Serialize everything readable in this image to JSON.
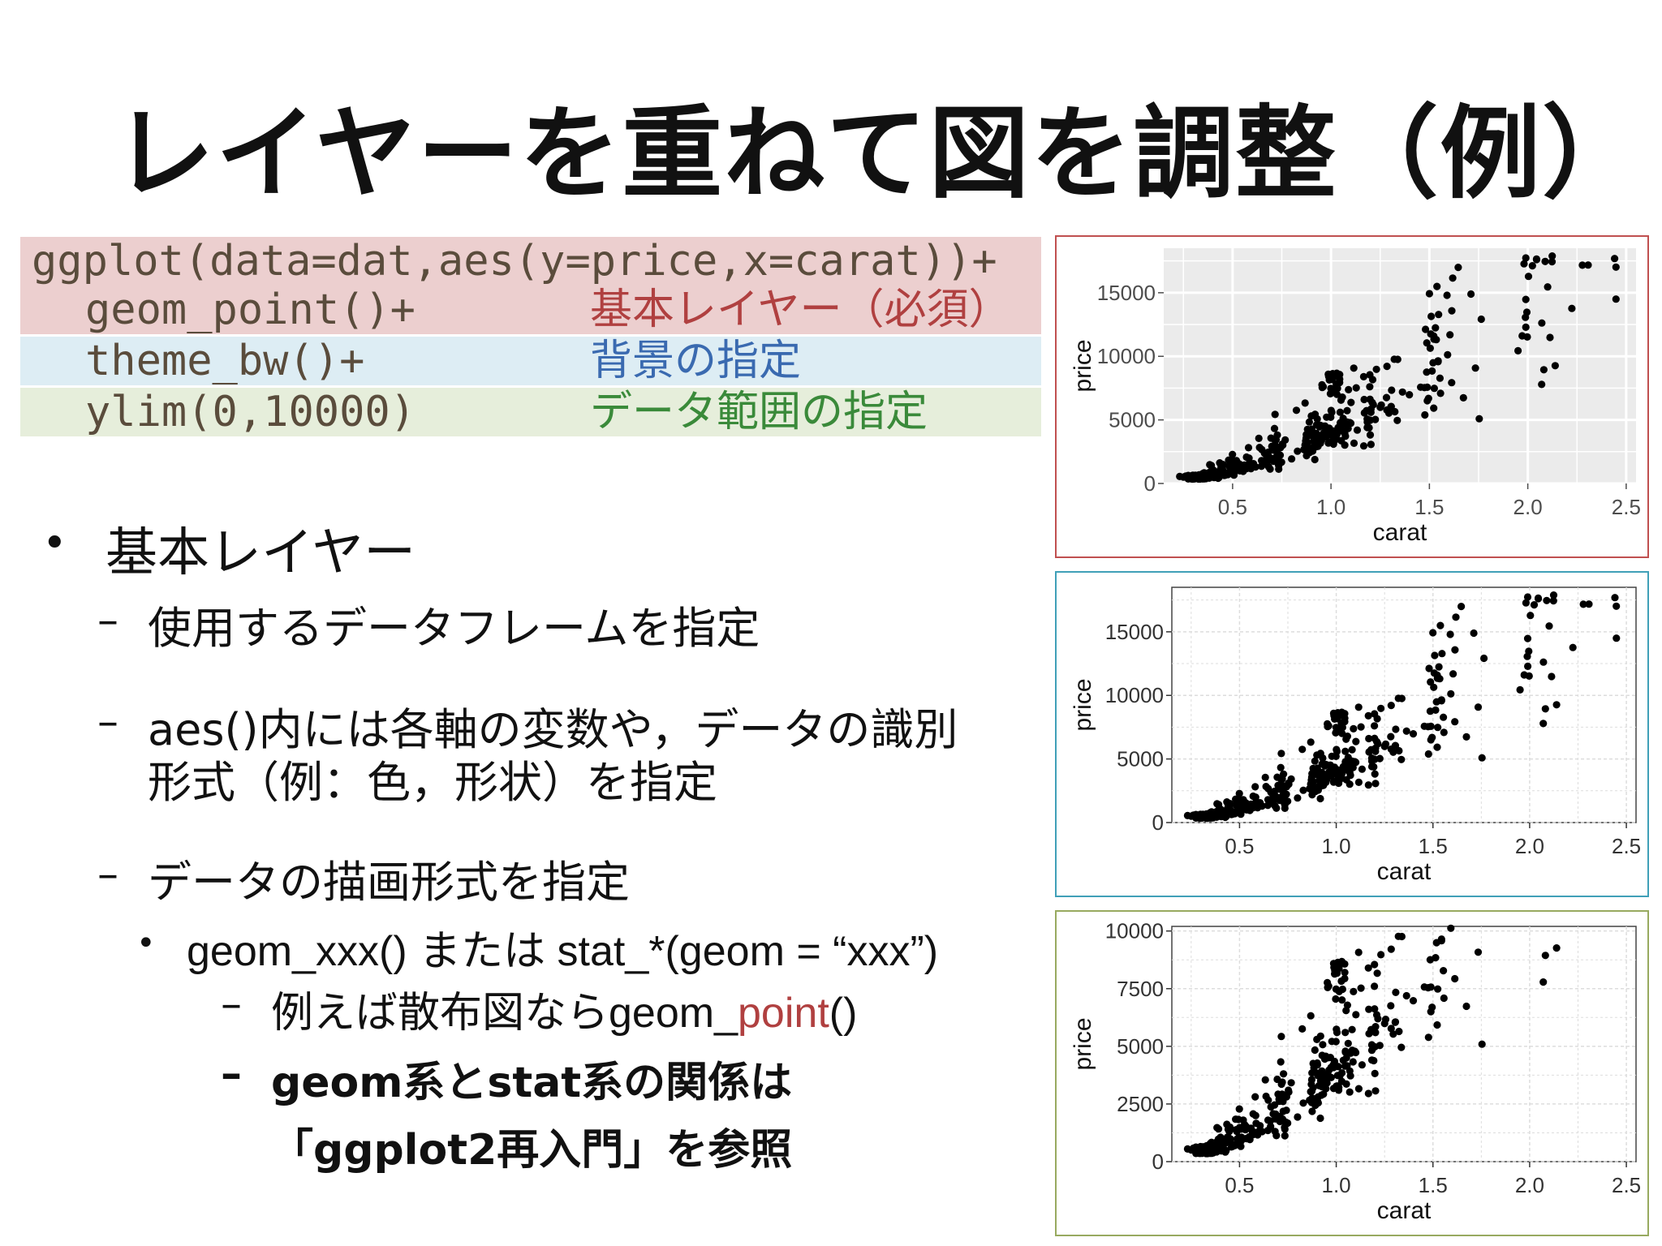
{
  "title": "レイヤーを重ねて図を調整（例）",
  "code": {
    "line1": "ggplot(data=dat,aes(y=price,x=carat))+",
    "line2": "geom_point()+",
    "line3": "theme_bw()+",
    "line4": "ylim(0,10000)",
    "comment2": "基本レイヤー（必須）",
    "comment3": "背景の指定",
    "comment4": "データ範囲の指定"
  },
  "bullets": {
    "b1": "基本レイヤー",
    "b1a": "使用するデータフレームを指定",
    "b1b_line1": "aes()内には各軸の変数や，データの識別",
    "b1b_line2": "形式（例：色，形状）を指定",
    "b1c": "データの描画形式を指定",
    "b2": "geom_xxx() または stat_*(geom = “xxx”)",
    "b3_prefix": "例えば散布図なら",
    "b3_code_a": "geom_",
    "b3_code_b": "point",
    "b3_code_c": "()",
    "b4_line1": "geom系とstat系の関係は",
    "b4_line2": "「ggplot2再入門」を参照"
  },
  "colors": {
    "comment2": "#b04040",
    "comment3": "#3a6ab0",
    "comment4": "#3a8a3a",
    "point_highlight": "#b04040",
    "box1": "#c05050",
    "box2": "#40a0b8",
    "box3": "#98aa60"
  },
  "chart_data": [
    {
      "type": "scatter",
      "theme": "grey",
      "xlabel": "carat",
      "ylabel": "price",
      "xlim": [
        0.15,
        2.55
      ],
      "ylim": [
        0,
        18500
      ],
      "xticks": [
        "0.5",
        "1.0",
        "1.5",
        "2.0",
        "2.5"
      ],
      "yticks": [
        "0",
        "5000",
        "10000",
        "15000"
      ],
      "grid": true
    },
    {
      "type": "scatter",
      "theme": "bw",
      "xlabel": "carat",
      "ylabel": "price",
      "xlim": [
        0.15,
        2.55
      ],
      "ylim": [
        0,
        18500
      ],
      "xticks": [
        "0.5",
        "1.0",
        "1.5",
        "2.0",
        "2.5"
      ],
      "yticks": [
        "0",
        "5000",
        "10000",
        "15000"
      ],
      "grid": true
    },
    {
      "type": "scatter",
      "theme": "bw",
      "xlabel": "carat",
      "ylabel": "price",
      "xlim": [
        0.15,
        2.55
      ],
      "ylim": [
        0,
        10200
      ],
      "xticks": [
        "0.5",
        "1.0",
        "1.5",
        "2.0",
        "2.5"
      ],
      "yticks": [
        "0",
        "2500",
        "5000",
        "7500",
        "10000"
      ],
      "grid": true
    }
  ]
}
